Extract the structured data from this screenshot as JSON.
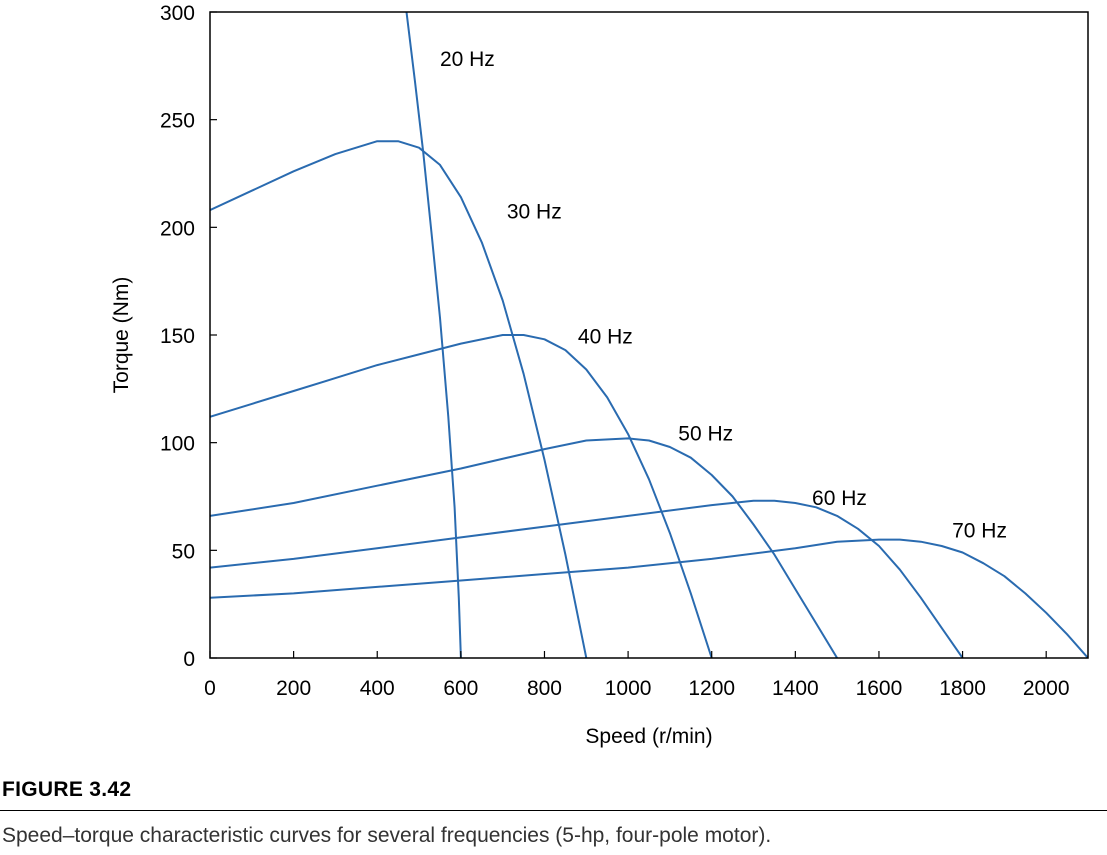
{
  "figure": {
    "number": "FIGURE 3.42",
    "caption": "Speed–torque characteristic curves for several frequencies (5-hp, four-pole motor)."
  },
  "chart_data": {
    "type": "line",
    "title": "",
    "xlabel": "Speed (r/min)",
    "ylabel": "Torque (Nm)",
    "xlim": [
      0,
      2100
    ],
    "ylim": [
      0,
      300
    ],
    "xticks": [
      0,
      200,
      400,
      600,
      800,
      1000,
      1200,
      1400,
      1600,
      1800,
      2000
    ],
    "yticks": [
      0,
      50,
      100,
      150,
      200,
      250,
      300
    ],
    "grid": false,
    "legend": "none",
    "line_color": "#2a6bb0",
    "series": [
      {
        "name": "20 Hz",
        "x": [
          470,
          490,
          510,
          530,
          550,
          570,
          585,
          595,
          600
        ],
        "y": [
          300,
          268,
          235,
          197,
          158,
          112,
          70,
          28,
          0
        ]
      },
      {
        "name": "30 Hz",
        "x": [
          0,
          100,
          200,
          300,
          400,
          450,
          500,
          550,
          600,
          650,
          700,
          750,
          800,
          850,
          900
        ],
        "y": [
          208,
          217,
          226,
          234,
          240,
          240,
          237,
          229,
          214,
          193,
          166,
          132,
          92,
          48,
          0
        ]
      },
      {
        "name": "40 Hz",
        "x": [
          0,
          100,
          200,
          300,
          400,
          500,
          600,
          700,
          750,
          800,
          850,
          900,
          950,
          1000,
          1050,
          1100,
          1150,
          1200
        ],
        "y": [
          112,
          118,
          124,
          130,
          136,
          141,
          146,
          150,
          150,
          148,
          143,
          134,
          121,
          104,
          83,
          58,
          30,
          0
        ]
      },
      {
        "name": "50 Hz",
        "x": [
          0,
          200,
          400,
          600,
          800,
          900,
          1000,
          1050,
          1100,
          1150,
          1200,
          1250,
          1300,
          1350,
          1400,
          1450,
          1500
        ],
        "y": [
          66,
          72,
          80,
          88,
          97,
          101,
          102,
          101,
          98,
          93,
          85,
          75,
          62,
          48,
          32,
          16,
          0
        ]
      },
      {
        "name": "60 Hz",
        "x": [
          0,
          200,
          400,
          600,
          800,
          1000,
          1200,
          1300,
          1350,
          1400,
          1450,
          1500,
          1550,
          1600,
          1650,
          1700,
          1750,
          1800
        ],
        "y": [
          42,
          46,
          51,
          56,
          61,
          66,
          71,
          73,
          73,
          72,
          70,
          66,
          60,
          52,
          41,
          28,
          14,
          0
        ]
      },
      {
        "name": "70 Hz",
        "x": [
          0,
          200,
          400,
          600,
          800,
          1000,
          1200,
          1400,
          1500,
          1600,
          1650,
          1700,
          1750,
          1800,
          1850,
          1900,
          1950,
          2000,
          2050,
          2100
        ],
        "y": [
          28,
          30,
          33,
          36,
          39,
          42,
          46,
          51,
          54,
          55,
          55,
          54,
          52,
          49,
          44,
          38,
          30,
          21,
          11,
          0
        ]
      }
    ],
    "annotations": [
      {
        "text": "20 Hz",
        "x": 550,
        "y": 275
      },
      {
        "text": "30 Hz",
        "x": 710,
        "y": 204
      },
      {
        "text": "40 Hz",
        "x": 880,
        "y": 146
      },
      {
        "text": "50 Hz",
        "x": 1120,
        "y": 101
      },
      {
        "text": "60 Hz",
        "x": 1440,
        "y": 71
      },
      {
        "text": "70 Hz",
        "x": 1775,
        "y": 56
      }
    ]
  }
}
